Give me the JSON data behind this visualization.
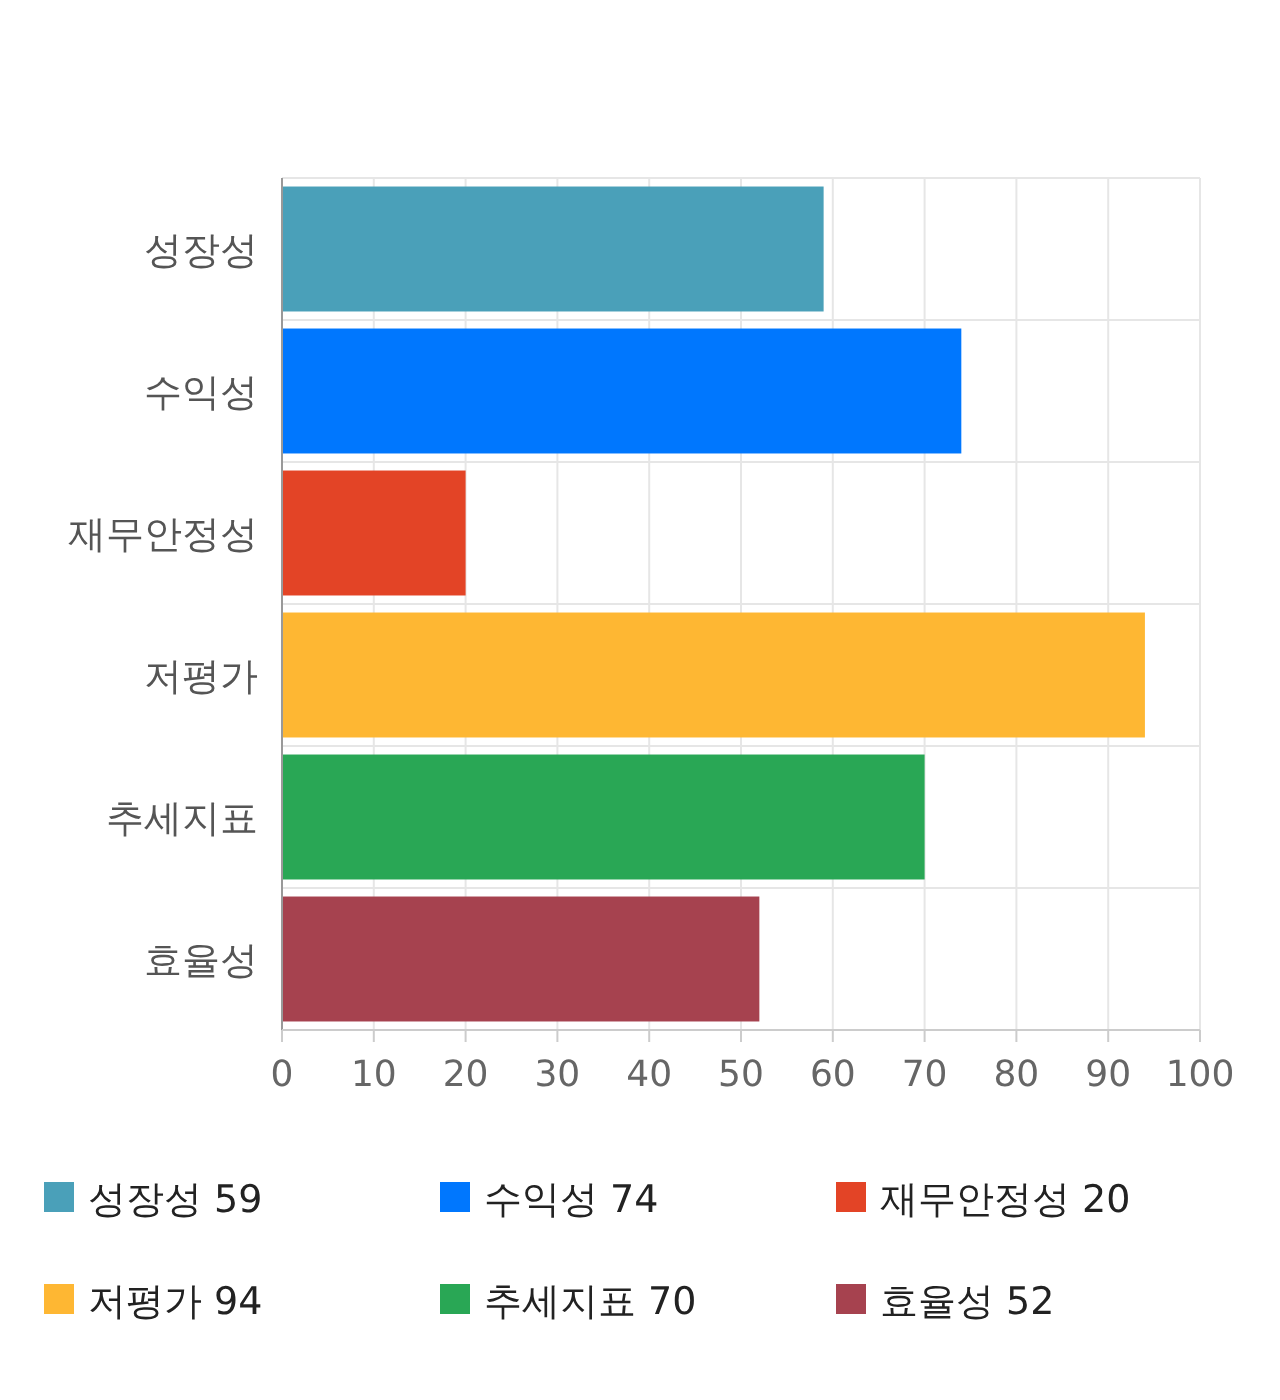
{
  "chart_data": {
    "type": "bar",
    "orientation": "horizontal",
    "categories": [
      "성장성",
      "수익성",
      "재무안정성",
      "저평가",
      "추세지표",
      "효율성"
    ],
    "series": [
      {
        "name": "성장성 59",
        "color": "#4aa0b9",
        "values": [
          59,
          null,
          null,
          null,
          null,
          null
        ]
      },
      {
        "name": "수익성 74",
        "color": "#0077fe",
        "values": [
          null,
          74,
          null,
          null,
          null,
          null
        ]
      },
      {
        "name": "재무안정성 20",
        "color": "#e34426",
        "values": [
          null,
          null,
          20,
          null,
          null,
          null
        ]
      },
      {
        "name": "저평가 94",
        "color": "#feb733",
        "values": [
          null,
          null,
          null,
          94,
          null,
          null
        ]
      },
      {
        "name": "추세지표 70",
        "color": "#29a755",
        "values": [
          null,
          null,
          null,
          null,
          70,
          null
        ]
      },
      {
        "name": "효율성 52",
        "color": "#a6424f",
        "values": [
          null,
          null,
          null,
          null,
          null,
          52
        ]
      }
    ],
    "xlim": [
      0,
      100
    ],
    "xticks": [
      0,
      10,
      20,
      30,
      40,
      50,
      60,
      70,
      80,
      90,
      100
    ],
    "grid": true,
    "legend": "bottom"
  }
}
